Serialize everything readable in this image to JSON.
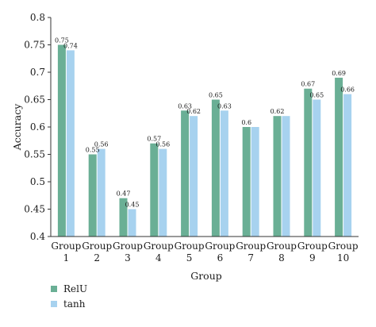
{
  "chart_data": {
    "type": "bar",
    "categories": [
      [
        "Group",
        "1"
      ],
      [
        "Group",
        "2"
      ],
      [
        "Group",
        "3"
      ],
      [
        "Group",
        "4"
      ],
      [
        "Group",
        "5"
      ],
      [
        "Group",
        "6"
      ],
      [
        "Group",
        "7"
      ],
      [
        "Group",
        "8"
      ],
      [
        "Group",
        "9"
      ],
      [
        "Group",
        "10"
      ]
    ],
    "series": [
      {
        "name": "RelU",
        "values": [
          0.75,
          0.55,
          0.47,
          0.57,
          0.63,
          0.65,
          0.6,
          0.62,
          0.67,
          0.69
        ],
        "labels": [
          "0.75",
          "0.55",
          "0.47",
          "0.57",
          "0.63",
          "0.65",
          "0.6",
          "0.62",
          "0.67",
          "0.69"
        ],
        "color": "#6aaf95"
      },
      {
        "name": "tanh",
        "values": [
          0.74,
          0.56,
          0.45,
          0.56,
          0.62,
          0.63,
          0.6,
          0.62,
          0.65,
          0.66
        ],
        "labels": [
          "0.74",
          "0.56",
          "0.45",
          "0.56",
          "0.62",
          "0.63",
          "",
          "",
          "0.65",
          "0.66"
        ],
        "color": "#a7d2ef"
      }
    ],
    "xlabel": "Group",
    "ylabel": "Accuracy",
    "ylim": [
      0.4,
      0.8
    ],
    "yticks": [
      "0.4",
      "0.45",
      "0.5",
      "0.55",
      "0.6",
      "0.65",
      "0.7",
      "0.75",
      "0.8"
    ],
    "grid": false,
    "legend_position": "bottom-left"
  }
}
